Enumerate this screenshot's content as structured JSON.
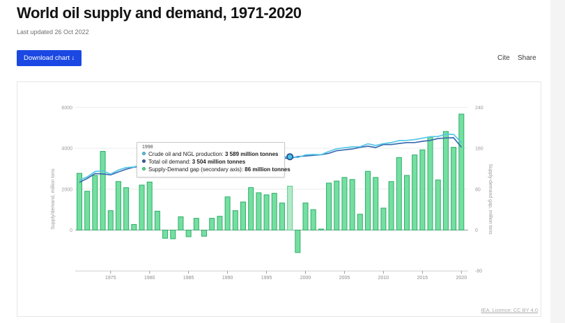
{
  "page": {
    "title": "World oil supply and demand, 1971-2020",
    "last_updated": "Last updated 26 Oct 2022",
    "download_label": "Download chart",
    "download_icon": "↓",
    "cite": "Cite",
    "share": "Share",
    "licence": "IEA. Licence: CC BY 4.0"
  },
  "tooltip": {
    "year": "1998",
    "items": [
      {
        "label": "Crude oil and NGL production: ",
        "value": "3 589 million tonnes",
        "dot_color": "#5ac8ea",
        "dot_ring": "#3a8fae"
      },
      {
        "label": "Total oil demand: ",
        "value": "3 504 million tonnes",
        "dot_color": "#3a5fa8",
        "dot_ring": "#27457e"
      },
      {
        "label": "Supply-Demand gap (secondary axis): ",
        "value": "86 million tonnes",
        "dot_color": "#62d08b",
        "dot_ring": "#2daf68"
      }
    ]
  },
  "chart_data": {
    "type": "combo-bar-line",
    "title": "World oil supply and demand, 1971-2020",
    "x": [
      1971,
      1972,
      1973,
      1974,
      1975,
      1976,
      1977,
      1978,
      1979,
      1980,
      1981,
      1982,
      1983,
      1984,
      1985,
      1986,
      1987,
      1988,
      1989,
      1990,
      1991,
      1992,
      1993,
      1994,
      1995,
      1996,
      1997,
      1998,
      1999,
      2000,
      2001,
      2002,
      2003,
      2004,
      2005,
      2006,
      2007,
      2008,
      2009,
      2010,
      2011,
      2012,
      2013,
      2014,
      2015,
      2016,
      2017,
      2018,
      2019,
      2020
    ],
    "series": [
      {
        "name": "Crude oil and NGL production",
        "type": "line",
        "axis": "left",
        "color": "#54c6e8",
        "values": [
          2450,
          2600,
          2870,
          2900,
          2740,
          2940,
          3060,
          3090,
          3210,
          3080,
          2900,
          2780,
          2760,
          2840,
          2800,
          2940,
          2950,
          3070,
          3140,
          3230,
          3230,
          3270,
          3280,
          3330,
          3390,
          3480,
          3580,
          3589,
          3550,
          3680,
          3700,
          3690,
          3850,
          3980,
          4030,
          4070,
          4080,
          4220,
          4140,
          4230,
          4280,
          4380,
          4390,
          4430,
          4500,
          4570,
          4580,
          4700,
          4680,
          4280
        ]
      },
      {
        "name": "Total oil demand",
        "type": "line",
        "axis": "left",
        "color": "#3a6bb0",
        "values": [
          2339,
          2524,
          2763,
          2746,
          2702,
          2845,
          2977,
          3079,
          3122,
          2986,
          2863,
          2796,
          2777,
          2814,
          2813,
          2917,
          2962,
          3047,
          3113,
          3165,
          3192,
          3215,
          3197,
          3257,
          3321,
          3408,
          3527,
          3504,
          3594,
          3627,
          3660,
          3688,
          3758,
          3884,
          3927,
          3971,
          4049,
          4105,
          4037,
          4187,
          4185,
          4238,
          4283,
          4283,
          4343,
          4388,
          4482,
          4507,
          4518,
          4053
        ]
      },
      {
        "name": "Supply-Demand gap",
        "type": "bar",
        "axis": "right",
        "color": "#74dfa0",
        "border_color": "#2fad6b",
        "highlight_year": 1998,
        "highlight_color": "#b2ebc8",
        "highlight_border": "#5ecb8e",
        "values": [
          111,
          76,
          107,
          154,
          38,
          95,
          83,
          11,
          88,
          94,
          37,
          -16,
          -17,
          26,
          -13,
          23,
          -12,
          23,
          27,
          65,
          38,
          55,
          83,
          73,
          69,
          72,
          53,
          86,
          -44,
          53,
          40,
          2,
          92,
          96,
          103,
          99,
          31,
          115,
          103,
          43,
          95,
          142,
          107,
          147,
          157,
          182,
          98,
          193,
          162,
          227
        ]
      }
    ],
    "left_axis": {
      "title": "Supply/demand, million tons",
      "tick_labels": [
        0,
        2000,
        4000,
        6000
      ],
      "range": [
        -2000,
        6000
      ]
    },
    "right_axis": {
      "title": "Supply-demand gap, million tons",
      "tick_labels": [
        -80,
        0,
        80,
        160,
        240
      ],
      "range": [
        -80,
        240
      ]
    },
    "x_axis": {
      "tick_years": [
        1975,
        1980,
        1985,
        1990,
        1995,
        2000,
        2005,
        2010,
        2015,
        2020
      ]
    },
    "grid": "horizontal",
    "marker": {
      "year": 1998,
      "series": "Crude oil and NGL production"
    }
  }
}
